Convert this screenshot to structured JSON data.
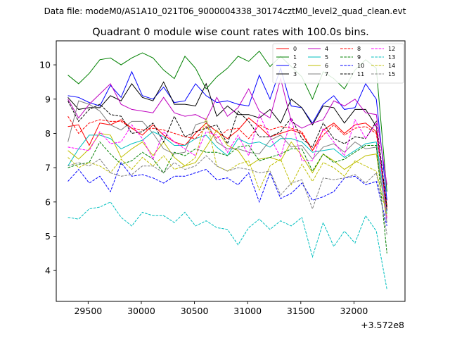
{
  "header": {
    "suptitle": "Data file: modeM0/AS1A10_021T06_9000004338_30174cztM0_level2_quad_clean.evt"
  },
  "chart_data": {
    "type": "line",
    "title": "Quadrant 0 module wise count rates with 100.0s bins.",
    "xlabel": "",
    "ylabel": "",
    "x_offset_label": "+3.572e8",
    "xlim": [
      29200,
      32480
    ],
    "ylim": [
      3.1,
      10.7
    ],
    "xticks": [
      29500,
      30000,
      30500,
      31000,
      31500,
      32000
    ],
    "xtick_labels": [
      "29500",
      "30000",
      "30500",
      "31000",
      "31500",
      "32000"
    ],
    "yticks": [
      4,
      5,
      6,
      7,
      8,
      9,
      10
    ],
    "ytick_labels": [
      "4",
      "5",
      "6",
      "7",
      "8",
      "9",
      "10"
    ],
    "legend_position": "top-right",
    "grid": false,
    "x": [
      29310,
      29410,
      29510,
      29610,
      29710,
      29810,
      29910,
      30010,
      30110,
      30210,
      30310,
      30410,
      30510,
      30610,
      30710,
      30810,
      30910,
      31010,
      31110,
      31210,
      31310,
      31410,
      31510,
      31610,
      31710,
      31810,
      31910,
      32010,
      32110,
      32210,
      32310
    ],
    "series": [
      {
        "name": "0",
        "color": "#ff0000",
        "dash": "solid",
        "values": [
          8.2,
          8.25,
          7.65,
          8.3,
          8.25,
          8.4,
          8.15,
          7.95,
          8.25,
          7.95,
          7.75,
          7.65,
          8.0,
          8.3,
          8.05,
          7.85,
          8.1,
          8.45,
          8.2,
          7.9,
          8.0,
          8.1,
          8.0,
          7.5,
          8.1,
          8.3,
          8.0,
          8.25,
          8.3,
          8.05,
          5.9
        ]
      },
      {
        "name": "1",
        "color": "#008000",
        "dash": "solid",
        "values": [
          9.7,
          9.45,
          9.75,
          10.15,
          10.2,
          10.0,
          10.2,
          10.35,
          10.2,
          9.85,
          9.6,
          10.25,
          9.9,
          9.3,
          9.65,
          9.9,
          10.25,
          10.1,
          10.4,
          9.95,
          10.25,
          9.95,
          9.65,
          9.0,
          9.8,
          9.6,
          9.3,
          9.85,
          10.15,
          9.9,
          6.3
        ]
      },
      {
        "name": "2",
        "color": "#0000ff",
        "dash": "solid",
        "values": [
          9.1,
          9.05,
          8.9,
          8.8,
          9.4,
          9.05,
          9.8,
          9.1,
          9.0,
          9.35,
          8.9,
          8.95,
          9.45,
          9.1,
          8.9,
          8.95,
          8.85,
          8.8,
          9.7,
          9.0,
          9.9,
          8.8,
          8.75,
          8.3,
          8.85,
          9.1,
          8.7,
          8.75,
          9.45,
          9.0,
          6.05
        ]
      },
      {
        "name": "3",
        "color": "#000000",
        "dash": "solid",
        "values": [
          9.05,
          8.7,
          8.75,
          8.75,
          9.1,
          8.95,
          9.45,
          9.05,
          8.95,
          9.5,
          8.85,
          8.85,
          8.8,
          9.45,
          8.5,
          8.8,
          8.55,
          8.55,
          8.45,
          8.7,
          8.3,
          9.0,
          8.75,
          8.25,
          8.8,
          8.75,
          8.3,
          8.7,
          8.7,
          8.2,
          5.75
        ]
      },
      {
        "name": "4",
        "color": "#bf00bf",
        "dash": "solid",
        "values": [
          9.0,
          8.45,
          8.85,
          9.15,
          9.45,
          8.85,
          8.7,
          8.65,
          8.6,
          9.05,
          8.6,
          8.5,
          8.55,
          8.4,
          9.05,
          8.5,
          8.75,
          9.3,
          8.65,
          8.45,
          9.6,
          8.35,
          8.15,
          8.3,
          8.4,
          8.95,
          8.8,
          9.0,
          8.6,
          8.55,
          6.5
        ]
      },
      {
        "name": "5",
        "color": "#00bfbf",
        "dash": "solid",
        "values": [
          7.05,
          7.55,
          7.95,
          7.95,
          7.85,
          7.55,
          7.7,
          7.8,
          8.05,
          7.9,
          7.65,
          7.65,
          7.85,
          7.95,
          7.6,
          7.35,
          7.85,
          7.7,
          7.75,
          7.6,
          7.85,
          7.85,
          7.75,
          7.45,
          7.5,
          7.55,
          7.3,
          7.5,
          7.7,
          7.75,
          5.65
        ]
      },
      {
        "name": "6",
        "color": "#bfbf00",
        "dash": "solid",
        "values": [
          7.5,
          7.25,
          7.55,
          8.0,
          7.95,
          7.3,
          7.55,
          7.75,
          7.35,
          7.75,
          7.3,
          7.05,
          7.15,
          7.6,
          8.1,
          7.65,
          7.5,
          7.05,
          7.25,
          7.3,
          7.2,
          7.75,
          7.35,
          6.85,
          7.4,
          7.2,
          6.95,
          7.15,
          7.35,
          7.4,
          5.55
        ]
      },
      {
        "name": "7",
        "color": "#808080",
        "dash": "solid",
        "values": [
          7.75,
          8.95,
          8.85,
          8.65,
          8.25,
          8.1,
          8.35,
          8.35,
          8.0,
          7.55,
          7.4,
          7.45,
          8.25,
          8.35,
          7.75,
          7.55,
          7.55,
          7.45,
          7.4,
          7.8,
          7.95,
          7.6,
          7.65,
          7.25,
          7.6,
          7.7,
          7.45,
          7.75,
          7.55,
          7.6,
          5.4
        ]
      },
      {
        "name": "8",
        "color": "#ff0000",
        "dash": "dashed",
        "values": [
          8.5,
          8.0,
          8.3,
          8.4,
          8.35,
          8.35,
          8.15,
          8.1,
          8.15,
          8.1,
          8.0,
          7.9,
          7.85,
          8.2,
          7.85,
          8.1,
          8.15,
          7.85,
          8.25,
          8.1,
          8.2,
          8.15,
          8.05,
          7.5,
          7.95,
          8.25,
          7.95,
          8.15,
          8.2,
          8.0,
          5.8
        ]
      },
      {
        "name": "9",
        "color": "#008000",
        "dash": "dashed",
        "values": [
          7.0,
          7.1,
          7.15,
          7.75,
          7.4,
          7.1,
          7.2,
          7.45,
          7.25,
          6.85,
          7.45,
          7.35,
          7.55,
          7.45,
          7.45,
          7.35,
          7.6,
          7.65,
          7.2,
          7.3,
          7.4,
          7.55,
          7.55,
          6.9,
          7.4,
          7.15,
          7.25,
          7.45,
          7.65,
          7.65,
          4.5
        ]
      },
      {
        "name": "10",
        "color": "#0000ff",
        "dash": "dashed",
        "values": [
          6.6,
          6.95,
          6.55,
          6.75,
          6.3,
          7.15,
          6.75,
          6.8,
          6.7,
          6.55,
          6.75,
          6.75,
          6.85,
          6.95,
          6.65,
          6.7,
          6.5,
          6.85,
          6.0,
          6.85,
          6.1,
          6.25,
          6.55,
          6.05,
          6.15,
          6.3,
          6.7,
          6.75,
          6.5,
          6.6,
          5.3
        ]
      },
      {
        "name": "11",
        "color": "#000000",
        "dash": "dashed",
        "values": [
          8.95,
          8.35,
          8.7,
          8.85,
          8.55,
          8.5,
          8.0,
          8.05,
          8.3,
          7.75,
          8.5,
          7.9,
          8.05,
          8.15,
          8.25,
          7.7,
          8.65,
          8.35,
          7.9,
          7.9,
          8.05,
          8.45,
          7.85,
          7.6,
          8.3,
          7.85,
          7.7,
          7.9,
          7.85,
          8.35,
          5.85
        ]
      },
      {
        "name": "12",
        "color": "#ff00ff",
        "dash": "dashed",
        "values": [
          7.6,
          7.55,
          7.5,
          8.05,
          7.7,
          7.75,
          8.25,
          7.85,
          7.25,
          8.05,
          7.75,
          7.55,
          7.35,
          8.05,
          7.95,
          7.45,
          7.95,
          7.35,
          8.55,
          7.9,
          7.3,
          8.45,
          7.2,
          7.2,
          8.15,
          7.75,
          7.35,
          8.4,
          7.85,
          8.3,
          5.5
        ]
      },
      {
        "name": "13",
        "color": "#00bfbf",
        "dash": "dashed",
        "values": [
          5.55,
          5.5,
          5.8,
          5.85,
          6.0,
          5.55,
          5.3,
          5.7,
          5.6,
          5.6,
          5.4,
          5.7,
          5.3,
          5.45,
          5.25,
          5.2,
          4.75,
          5.25,
          5.5,
          5.2,
          5.45,
          5.3,
          5.55,
          4.4,
          5.4,
          4.7,
          5.15,
          4.8,
          5.6,
          5.15,
          3.45
        ]
      },
      {
        "name": "14",
        "color": "#bfbf00",
        "dash": "dashed",
        "values": [
          7.3,
          7.0,
          7.15,
          7.05,
          6.85,
          7.25,
          6.95,
          7.3,
          7.05,
          7.35,
          6.95,
          7.05,
          7.3,
          8.45,
          7.05,
          6.9,
          7.1,
          7.2,
          6.35,
          7.05,
          7.25,
          6.5,
          7.1,
          6.6,
          7.15,
          7.0,
          6.75,
          7.2,
          7.05,
          6.9,
          5.6
        ]
      },
      {
        "name": "15",
        "color": "#808080",
        "dash": "dashed",
        "values": [
          7.05,
          7.15,
          7.05,
          7.25,
          6.85,
          6.75,
          6.8,
          7.05,
          7.05,
          6.85,
          7.15,
          6.95,
          7.05,
          7.35,
          7.05,
          6.9,
          7.0,
          6.95,
          6.85,
          6.9,
          6.2,
          6.55,
          6.65,
          5.8,
          6.7,
          6.65,
          6.7,
          6.8,
          6.55,
          6.85,
          5.05
        ]
      }
    ]
  }
}
